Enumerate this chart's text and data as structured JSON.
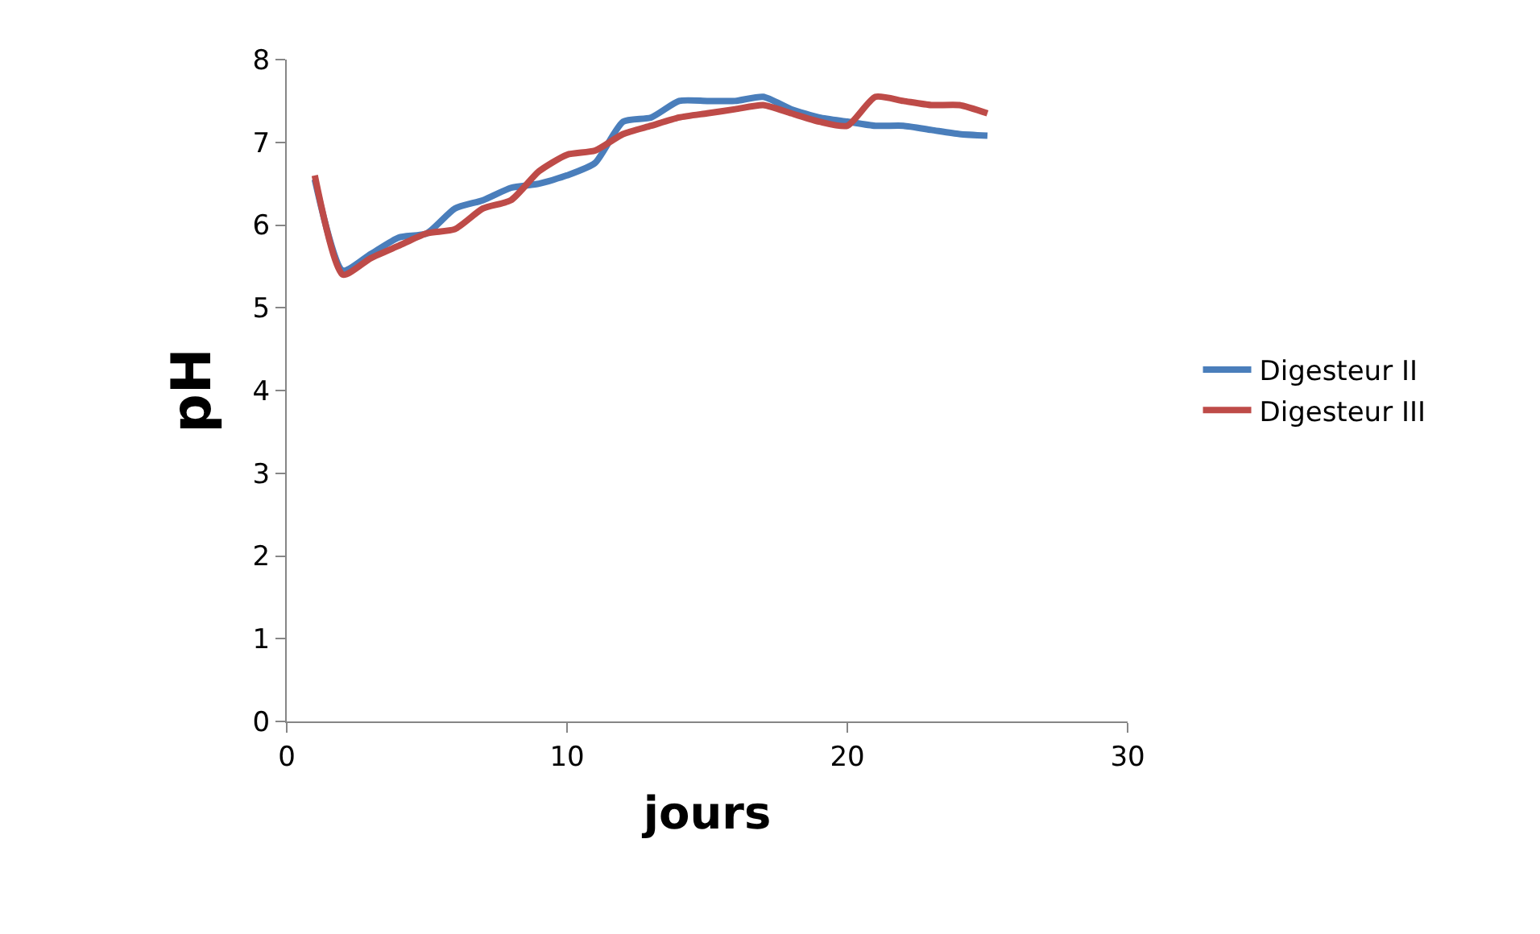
{
  "chart_data": {
    "type": "line",
    "xlabel": "jours",
    "ylabel": "pH",
    "x": [
      1,
      2,
      3,
      4,
      5,
      6,
      7,
      8,
      9,
      10,
      11,
      12,
      13,
      14,
      15,
      16,
      17,
      18,
      19,
      20,
      21,
      22,
      23,
      24,
      25
    ],
    "series": [
      {
        "name": "Digesteur II",
        "color": "#4a7ebb",
        "values": [
          6.55,
          5.45,
          5.65,
          5.85,
          5.9,
          6.2,
          6.3,
          6.45,
          6.5,
          6.6,
          6.75,
          7.25,
          7.3,
          7.5,
          7.5,
          7.5,
          7.55,
          7.4,
          7.3,
          7.25,
          7.2,
          7.2,
          7.15,
          7.1,
          7.08
        ]
      },
      {
        "name": "Digesteur III",
        "color": "#be4b48",
        "values": [
          6.6,
          5.4,
          5.6,
          5.75,
          5.9,
          5.95,
          6.2,
          6.3,
          6.65,
          6.85,
          6.9,
          7.1,
          7.2,
          7.3,
          7.35,
          7.4,
          7.45,
          7.35,
          7.25,
          7.2,
          7.55,
          7.5,
          7.45,
          7.45,
          7.35
        ]
      }
    ],
    "xlim": [
      0,
      30
    ],
    "xticks": [
      0,
      10,
      20,
      30
    ],
    "ylim": [
      0,
      8
    ],
    "yticks": [
      0,
      1,
      2,
      3,
      4,
      5,
      6,
      7,
      8
    ],
    "legend": "right",
    "marker": "none",
    "line_style": "solid"
  }
}
